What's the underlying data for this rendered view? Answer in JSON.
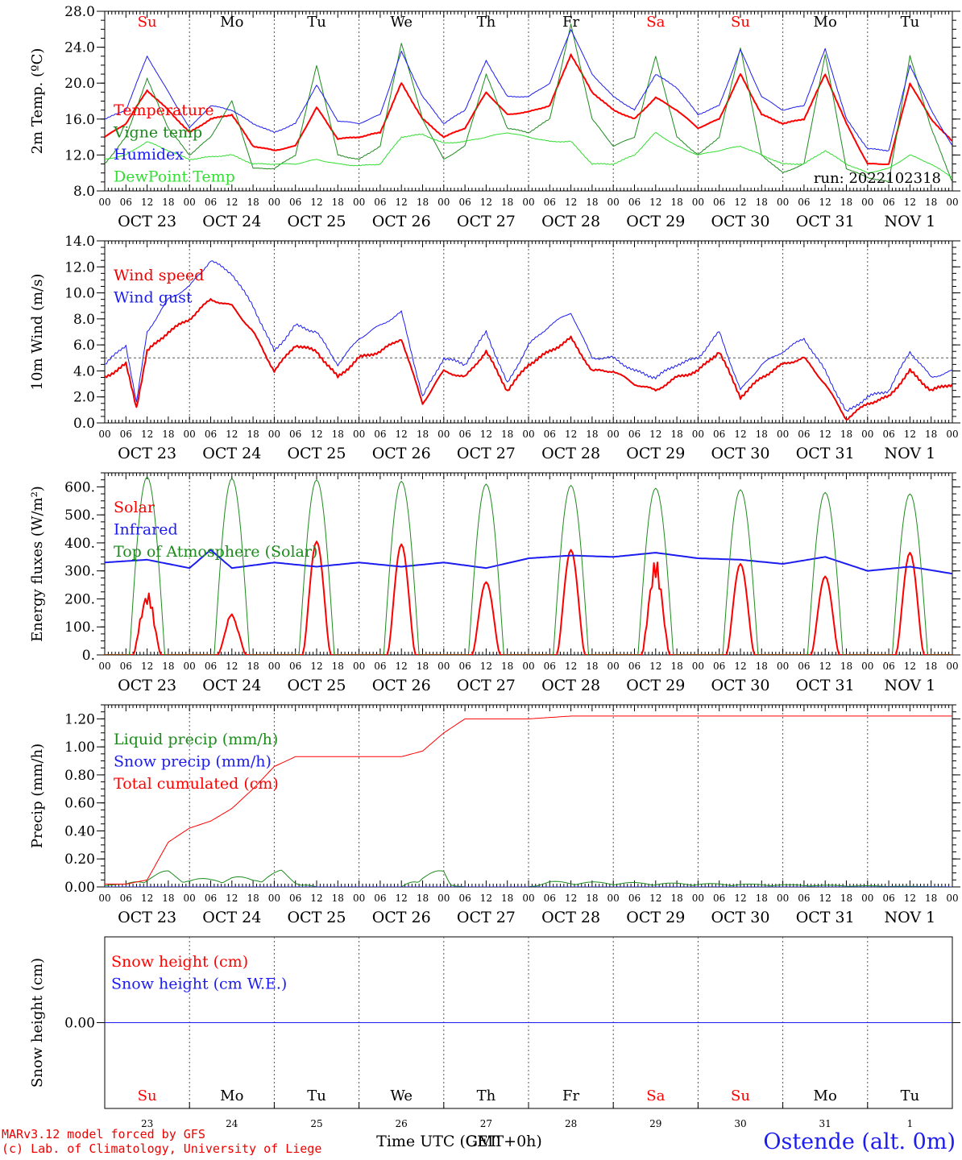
{
  "colors": {
    "red": "#ff0000",
    "darkred": "#ee0000",
    "green": "#1e8a1e",
    "lightgreen": "#33dd33",
    "blue": "#1c1cf0",
    "grid": "#555555",
    "purple": "#7a2a9a"
  },
  "time_axis": {
    "hour_labels": [
      "00",
      "06",
      "12",
      "18"
    ],
    "date_labels": [
      "OCT 23",
      "OCT 24",
      "OCT 25",
      "OCT 26",
      "OCT 27",
      "OCT 28",
      "OCT 29",
      "OCT 30",
      "OCT 31",
      "NOV  1"
    ],
    "weekdays": [
      "Su",
      "Mo",
      "Tu",
      "We",
      "Th",
      "Fr",
      "Sa",
      "Su",
      "Mo",
      "Tu"
    ],
    "weekday_colors": [
      "#ff0000",
      "#000000",
      "#000000",
      "#000000",
      "#000000",
      "#000000",
      "#ff0000",
      "#ff0000",
      "#000000",
      "#000000"
    ],
    "day_numbers": [
      "23",
      "24",
      "25",
      "26",
      "27",
      "28",
      "29",
      "30",
      "31",
      "1"
    ],
    "xlabel": "Time UTC (GMT+0h)",
    "xlabel_overlap": "CET"
  },
  "chart_data": [
    {
      "type": "line",
      "ylabel": "2m Temp. (ºC)",
      "ylim": [
        8,
        28
      ],
      "yticks": [
        "8.0",
        "12.0",
        "16.0",
        "20.0",
        "24.0",
        "28.0"
      ],
      "annotation": "run: 2022102318",
      "x_hours": [
        0,
        6,
        12,
        18,
        24,
        30,
        36,
        42,
        48,
        54,
        60,
        66,
        72,
        78,
        84,
        90,
        96,
        102,
        108,
        114,
        120,
        126,
        132,
        138,
        144,
        150,
        156,
        162,
        168,
        174,
        180,
        186,
        192,
        198,
        204,
        210,
        216,
        222,
        228,
        234,
        240
      ],
      "series": [
        {
          "name": "Temperature",
          "color": "#ff0000",
          "width": 2,
          "values": [
            14,
            15.5,
            19.2,
            17,
            14.5,
            16,
            16.5,
            13,
            12.5,
            13,
            17.3,
            13.8,
            14,
            14.5,
            20,
            16,
            14,
            15,
            19,
            16.5,
            16.8,
            17.5,
            23.2,
            19,
            17,
            16,
            18.4,
            17,
            15,
            16,
            21,
            16.5,
            15.5,
            16,
            21,
            15.5,
            11,
            11,
            20,
            16,
            13.5
          ]
        },
        {
          "name": "Vigne temp",
          "color": "#1e8a1e",
          "width": 1,
          "values": [
            11,
            14,
            20.5,
            15,
            12,
            14,
            18,
            10.5,
            10.5,
            12,
            22,
            12,
            11.5,
            13,
            24.5,
            16,
            11.5,
            13,
            21,
            15,
            14.5,
            16,
            26.5,
            16,
            13,
            14,
            23,
            14,
            12,
            14,
            24,
            12,
            10,
            11,
            23.2,
            10.5,
            9.5,
            9,
            23,
            15,
            9
          ]
        },
        {
          "name": "Humidex",
          "color": "#1c1cf0",
          "width": 1,
          "values": [
            16,
            17,
            23,
            19,
            15,
            17.5,
            17,
            15.5,
            14.5,
            15.5,
            19.8,
            15.8,
            15.5,
            16.5,
            23.5,
            18.5,
            15.5,
            17,
            22.5,
            18.5,
            18.5,
            20,
            26,
            21,
            18.5,
            17,
            21,
            19.5,
            16.5,
            17.5,
            23.7,
            18.5,
            17,
            17.5,
            23.8,
            16,
            12.7,
            12.5,
            22,
            17,
            13
          ]
        },
        {
          "name": "DewPoint Temp",
          "color": "#33dd33",
          "width": 1,
          "values": [
            11.5,
            12,
            13.5,
            12.5,
            11.5,
            11.8,
            12,
            11,
            11,
            11,
            11.5,
            11,
            10.8,
            11,
            14,
            14.3,
            13.3,
            13.5,
            14,
            14.5,
            14,
            13.5,
            13.5,
            11,
            11,
            12,
            14.5,
            13,
            12,
            12.5,
            13,
            12,
            11,
            11,
            12.5,
            11,
            10,
            10.5,
            12,
            11,
            9.5
          ]
        }
      ]
    },
    {
      "type": "line",
      "ylabel": "10m Wind (m/s)",
      "ylim": [
        0,
        14
      ],
      "yticks": [
        "0.0",
        "2.0",
        "4.0",
        "6.0",
        "8.0",
        "10.0",
        "12.0",
        "14.0"
      ],
      "reference_line": 5,
      "x_hours": [
        0,
        6,
        9,
        12,
        18,
        24,
        30,
        36,
        42,
        48,
        54,
        60,
        66,
        72,
        78,
        84,
        90,
        96,
        102,
        108,
        114,
        120,
        126,
        132,
        138,
        144,
        150,
        156,
        162,
        168,
        174,
        180,
        186,
        192,
        198,
        204,
        210,
        216,
        222,
        228,
        234,
        240
      ],
      "series": [
        {
          "name": "Wind speed",
          "color": "#ee0000",
          "width": 2,
          "values": [
            3.5,
            4.5,
            1.2,
            5.5,
            7,
            8,
            9.5,
            9,
            7,
            4,
            6,
            5.5,
            3.5,
            5,
            5.5,
            6.5,
            1.5,
            4,
            3.5,
            5.5,
            2.5,
            4.5,
            5.5,
            6.5,
            4,
            4,
            3,
            2.5,
            3.5,
            4,
            5.5,
            2,
            3.5,
            4.5,
            5,
            3,
            0.3,
            1.5,
            2,
            4,
            2.5,
            3
          ]
        },
        {
          "name": "Wind gust",
          "color": "#1c1cf0",
          "width": 1,
          "values": [
            4.5,
            6,
            1.5,
            7,
            9.5,
            10.5,
            12.5,
            11.5,
            9,
            5.5,
            7.5,
            7,
            4.5,
            6.5,
            7.5,
            8.5,
            2,
            5,
            4.5,
            7,
            3,
            6,
            7.5,
            8.5,
            5,
            5,
            4,
            3.5,
            4.5,
            5,
            7,
            2.5,
            4.5,
            5.5,
            6.5,
            4,
            0.8,
            2,
            2.5,
            5.5,
            3.5,
            4
          ]
        }
      ]
    },
    {
      "type": "line",
      "ylabel": "Energy fluxes (W/m²)",
      "ylim": [
        0,
        650
      ],
      "yticks": [
        "0.",
        "100.",
        "200.",
        "300.",
        "400.",
        "500.",
        "600."
      ],
      "series": [
        {
          "name": "Solar",
          "color": "#ff0000",
          "width": 2,
          "daily_peaks": [
            240,
            165,
            405,
            395,
            260,
            375,
            355,
            325,
            280,
            365
          ]
        },
        {
          "name": "Infrared",
          "color": "#1c1cf0",
          "width": 2,
          "x_hours": [
            0,
            12,
            24,
            30,
            36,
            48,
            60,
            72,
            84,
            96,
            108,
            120,
            132,
            144,
            156,
            168,
            180,
            192,
            204,
            216,
            228,
            240
          ],
          "values": [
            330,
            340,
            310,
            375,
            310,
            330,
            315,
            330,
            315,
            330,
            310,
            345,
            355,
            350,
            365,
            345,
            340,
            325,
            350,
            300,
            315,
            290
          ]
        },
        {
          "name": "Top of Atmosphere (Solar)",
          "color": "#1e8a1e",
          "width": 1,
          "daily_peaks": [
            635,
            630,
            625,
            620,
            610,
            605,
            595,
            590,
            580,
            575
          ]
        }
      ]
    },
    {
      "type": "line",
      "ylabel": "Precip (mm/h)",
      "ylim": [
        0,
        1.3
      ],
      "yticks": [
        "0.00",
        "0.20",
        "0.40",
        "0.60",
        "0.80",
        "1.00",
        "1.20"
      ],
      "series": [
        {
          "name": "Liquid precip (mm/h)",
          "color": "#1e8a1e",
          "width": 1,
          "x_hours": [
            0,
            6,
            12,
            18,
            24,
            30,
            36,
            42,
            46,
            50,
            54,
            60,
            72,
            84,
            90,
            96,
            98,
            102,
            108,
            120,
            126,
            240
          ],
          "values": [
            0.02,
            0.02,
            0.08,
            0.12,
            0.06,
            0.06,
            0.08,
            0.06,
            0.1,
            0.12,
            0.04,
            0,
            0,
            0,
            0.1,
            0.12,
            0.02,
            0,
            0,
            0,
            0.04,
            0
          ]
        },
        {
          "name": "Snow precip (mm/h)",
          "color": "#1c1cf0",
          "width": 1,
          "x_hours": [
            0,
            240
          ],
          "values": [
            0,
            0
          ]
        },
        {
          "name": "Total cumulated (cm)",
          "color": "#ff0000",
          "width": 1,
          "x_hours": [
            0,
            6,
            12,
            18,
            24,
            30,
            36,
            42,
            48,
            54,
            60,
            72,
            84,
            90,
            96,
            102,
            108,
            120,
            132,
            144,
            180,
            240
          ],
          "values": [
            0.02,
            0.02,
            0.05,
            0.32,
            0.42,
            0.47,
            0.56,
            0.7,
            0.86,
            0.93,
            0.93,
            0.93,
            0.93,
            0.97,
            1.1,
            1.2,
            1.2,
            1.2,
            1.22,
            1.22,
            1.22,
            1.22
          ]
        }
      ]
    },
    {
      "type": "line",
      "ylabel": "Snow height (cm)",
      "ylim": [
        -1,
        1
      ],
      "yticks": [
        "0.00"
      ],
      "series": [
        {
          "name": "Snow height (cm)",
          "color": "#ff0000",
          "width": 1,
          "x_hours": [
            0,
            240
          ],
          "values": [
            0,
            0
          ]
        },
        {
          "name": "Snow height (cm W.E.)",
          "color": "#1c1cf0",
          "width": 1,
          "x_hours": [
            0,
            240
          ],
          "values": [
            0,
            0
          ]
        }
      ]
    }
  ],
  "footer": {
    "credit_line1": "MARv3.12 model forced by GFS",
    "credit_line2": "(c) Lab. of Climatology, University of Liege",
    "station": "Ostende (alt. 0m)"
  }
}
